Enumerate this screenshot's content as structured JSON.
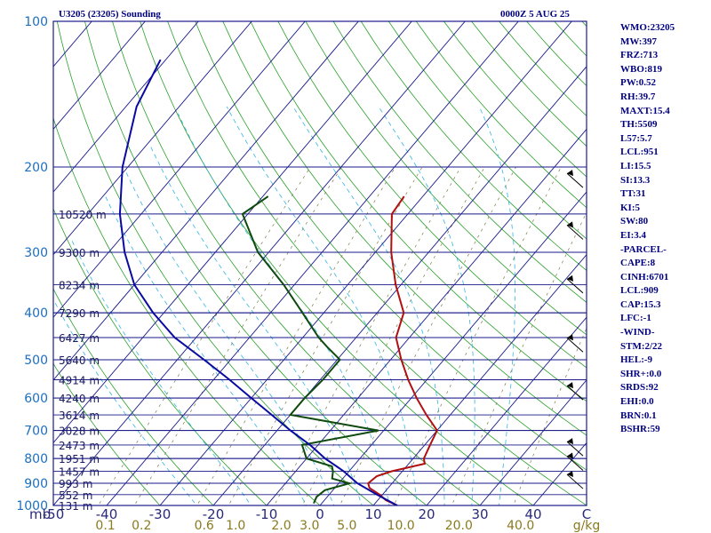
{
  "header": {
    "station": "U3205 (23205) Sounding",
    "time": "0000Z  5 AUG 25"
  },
  "stats": [
    "WMO:23205",
    "MW:397",
    "FRZ:713",
    "WBO:819",
    "PW:0.52",
    "RH:39.7",
    "MAXT:15.4",
    "TH:5509",
    "L57:5.7",
    "LCL:951",
    "LI:15.5",
    "SI:13.3",
    "TT:31",
    "KI:5",
    "SW:80",
    "EI:3.4",
    "-PARCEL-",
    "CAPE:8",
    "CINH:6701",
    "LCL:909",
    "CAP:15.3",
    "LFC:-1",
    "-WIND-",
    "STM:2/22",
    "HEL:-9",
    "SHR+:0.0",
    "SRDS:92",
    "EHI:0.0",
    "BRN:0.1",
    "BSHR:59"
  ],
  "chart_data": {
    "type": "line",
    "title": "U3205 (23205) Sounding",
    "xlabel": "°C",
    "ylabel": "mb",
    "skewt": true,
    "xlim": [
      -50,
      50
    ],
    "ylim": [
      1000,
      100
    ],
    "y_scale": "log",
    "pressure_ticks": [
      {
        "value": 1000,
        "label": "1000"
      },
      {
        "value": 900,
        "label": "900"
      },
      {
        "value": 800,
        "label": "800"
      },
      {
        "value": 700,
        "label": "700"
      },
      {
        "value": 600,
        "label": "600"
      },
      {
        "value": 500,
        "label": "500"
      },
      {
        "value": 400,
        "label": "400"
      },
      {
        "value": 300,
        "label": "300"
      },
      {
        "value": 200,
        "label": "200"
      },
      {
        "value": 100,
        "label": "100"
      }
    ],
    "pressure_unit_label": "mb",
    "temperature_ticks": [
      {
        "value": -50,
        "label": "-50"
      },
      {
        "value": -40,
        "label": "-40"
      },
      {
        "value": -30,
        "label": "-30"
      },
      {
        "value": -20,
        "label": "-20"
      },
      {
        "value": -10,
        "label": "-10"
      },
      {
        "value": 0,
        "label": "0"
      },
      {
        "value": 10,
        "label": "10"
      },
      {
        "value": 20,
        "label": "20"
      },
      {
        "value": 30,
        "label": "30"
      },
      {
        "value": 40,
        "label": "40"
      },
      {
        "value": 50,
        "label": "C"
      }
    ],
    "mixing_ratio_ticks": [
      {
        "value": 0.1,
        "label": "0.1"
      },
      {
        "value": 0.2,
        "label": "0.2"
      },
      {
        "value": 0.6,
        "label": "0.6"
      },
      {
        "value": 1.0,
        "label": "1.0"
      },
      {
        "value": 2.0,
        "label": "2.0"
      },
      {
        "value": 3.0,
        "label": "3.0"
      },
      {
        "value": 5.0,
        "label": "5.0"
      },
      {
        "value": 10.0,
        "label": "10.0"
      },
      {
        "value": 20.0,
        "label": "20.0"
      },
      {
        "value": 40.0,
        "label": "40.0"
      }
    ],
    "mixing_ratio_unit": "g/kg",
    "height_labels": [
      {
        "p": 1000,
        "label": "131 m"
      },
      {
        "p": 950,
        "label": "552 m"
      },
      {
        "p": 900,
        "label": "993 m"
      },
      {
        "p": 850,
        "label": "1457 m"
      },
      {
        "p": 800,
        "label": "1951 m"
      },
      {
        "p": 750,
        "label": "2473 m"
      },
      {
        "p": 700,
        "label": "3028 m"
      },
      {
        "p": 650,
        "label": "3614 m"
      },
      {
        "p": 600,
        "label": "4240 m"
      },
      {
        "p": 550,
        "label": "4914 m"
      },
      {
        "p": 500,
        "label": "5640 m"
      },
      {
        "p": 450,
        "label": "6427 m"
      },
      {
        "p": 400,
        "label": "7290 m"
      },
      {
        "p": 350,
        "label": "8234 m"
      },
      {
        "p": 300,
        "label": "9300 m"
      },
      {
        "p": 250,
        "label": "10520 m"
      }
    ],
    "grid": true,
    "series": [
      {
        "color": "#b01010",
        "p": [
          1000,
          975,
          950,
          920,
          900,
          870,
          850,
          820,
          800,
          750,
          700,
          650,
          600,
          550,
          500,
          450,
          400,
          350,
          300,
          250,
          230
        ],
        "t": [
          14.5,
          11.5,
          9.5,
          6.5,
          5.5,
          6.0,
          8.0,
          13.0,
          12.0,
          11.0,
          10.0,
          5.5,
          1.0,
          -3.5,
          -8.0,
          -12.5,
          -15.0,
          -21.0,
          -27.0,
          -33.0,
          -33.5
        ]
      },
      {
        "color": "#0f4a0f",
        "p": [
          990,
          960,
          930,
          900,
          880,
          850,
          830,
          800,
          750,
          700,
          650,
          600,
          550,
          500,
          470,
          450,
          400,
          350,
          300,
          250,
          230
        ],
        "t": [
          -1.5,
          -2.0,
          -1.5,
          2.0,
          -2.0,
          -3.0,
          -4.0,
          -10.0,
          -13.0,
          -1.0,
          -20.0,
          -20.0,
          -19.5,
          -19.5,
          -24.0,
          -27.0,
          -34.0,
          -42.0,
          -52.0,
          -61.0,
          -59.0
        ]
      },
      {
        "color": "#0a0aa0",
        "p": [
          1000,
          950,
          900,
          850,
          800,
          750,
          700,
          650,
          600,
          550,
          500,
          450,
          400,
          350,
          300,
          250,
          200,
          150,
          120
        ],
        "t": [
          14.5,
          9.0,
          3.5,
          -1.0,
          -6.5,
          -11.5,
          -17.5,
          -23.5,
          -30.0,
          -37.0,
          -45.0,
          -54.0,
          -62.0,
          -70.0,
          -77.0,
          -84.0,
          -91.0,
          -98.0,
          -101.0
        ]
      }
    ],
    "wind_barbs": [
      {
        "p": 215
      },
      {
        "p": 275
      },
      {
        "p": 355
      },
      {
        "p": 470
      },
      {
        "p": 590
      },
      {
        "p": 770
      },
      {
        "p": 825
      },
      {
        "p": 900
      }
    ]
  }
}
